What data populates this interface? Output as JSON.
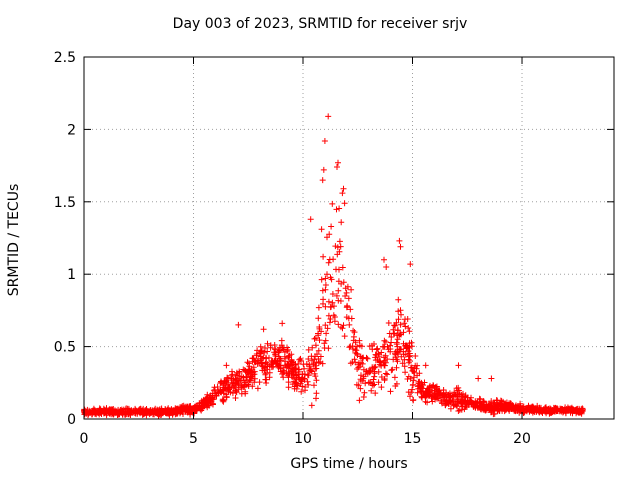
{
  "chart_data": {
    "type": "scatter",
    "title": "Day 003 of 2023, SRMTID for receiver srjv",
    "xlabel": "GPS time / hours",
    "ylabel": "SRMTID / TECUs",
    "xlim": [
      0,
      24.2
    ],
    "ylim": [
      0,
      2.5
    ],
    "xticks": [
      0,
      5,
      10,
      15,
      20
    ],
    "xtick_labels": [
      "0",
      "5",
      "10",
      "15",
      "20"
    ],
    "yticks": [
      0,
      0.5,
      1,
      1.5,
      2,
      2.5
    ],
    "ytick_labels": [
      "0",
      "0.5",
      "1",
      "1.5",
      "2",
      "2.5"
    ],
    "grid": true,
    "marker": "+",
    "color": "#ff0000",
    "series": [
      {
        "name": "SRMTID",
        "profile": [
          [
            0.0,
            0.05,
            0.03
          ],
          [
            1.0,
            0.05,
            0.03
          ],
          [
            2.0,
            0.05,
            0.03
          ],
          [
            3.0,
            0.05,
            0.03
          ],
          [
            4.0,
            0.05,
            0.035
          ],
          [
            5.0,
            0.07,
            0.04
          ],
          [
            5.5,
            0.1,
            0.06
          ],
          [
            6.0,
            0.17,
            0.09
          ],
          [
            6.5,
            0.22,
            0.12
          ],
          [
            7.0,
            0.25,
            0.13
          ],
          [
            7.5,
            0.3,
            0.15
          ],
          [
            8.0,
            0.4,
            0.2
          ],
          [
            8.5,
            0.38,
            0.18
          ],
          [
            9.0,
            0.4,
            0.2
          ],
          [
            9.5,
            0.33,
            0.17
          ],
          [
            10.0,
            0.3,
            0.15
          ],
          [
            10.5,
            0.4,
            0.35
          ],
          [
            11.0,
            0.8,
            0.7
          ],
          [
            11.5,
            1.0,
            0.75
          ],
          [
            12.0,
            0.8,
            0.6
          ],
          [
            12.5,
            0.4,
            0.3
          ],
          [
            13.0,
            0.35,
            0.25
          ],
          [
            13.5,
            0.4,
            0.3
          ],
          [
            14.0,
            0.45,
            0.35
          ],
          [
            14.5,
            0.55,
            0.45
          ],
          [
            15.0,
            0.35,
            0.3
          ],
          [
            15.5,
            0.18,
            0.1
          ],
          [
            16.0,
            0.2,
            0.12
          ],
          [
            16.5,
            0.13,
            0.08
          ],
          [
            17.0,
            0.15,
            0.12
          ],
          [
            17.5,
            0.12,
            0.08
          ],
          [
            18.0,
            0.1,
            0.06
          ],
          [
            18.5,
            0.08,
            0.05
          ],
          [
            19.0,
            0.09,
            0.06
          ],
          [
            20.0,
            0.07,
            0.04
          ],
          [
            21.0,
            0.06,
            0.03
          ],
          [
            22.0,
            0.06,
            0.03
          ],
          [
            22.8,
            0.06,
            0.03
          ]
        ],
        "peaks": [
          {
            "x": 11.15,
            "y": 2.09
          },
          {
            "x": 11.0,
            "y": 1.92
          },
          {
            "x": 11.6,
            "y": 1.77
          },
          {
            "x": 11.55,
            "y": 1.74
          },
          {
            "x": 10.95,
            "y": 1.72
          },
          {
            "x": 10.9,
            "y": 1.65
          },
          {
            "x": 11.85,
            "y": 1.59
          },
          {
            "x": 11.8,
            "y": 1.56
          },
          {
            "x": 11.9,
            "y": 1.49
          },
          {
            "x": 10.35,
            "y": 1.38
          },
          {
            "x": 10.85,
            "y": 1.31
          },
          {
            "x": 14.4,
            "y": 1.23
          },
          {
            "x": 14.45,
            "y": 1.19
          },
          {
            "x": 14.9,
            "y": 1.07
          },
          {
            "x": 13.7,
            "y": 1.1
          },
          {
            "x": 13.8,
            "y": 1.05
          },
          {
            "x": 7.05,
            "y": 0.65
          },
          {
            "x": 9.05,
            "y": 0.66
          },
          {
            "x": 8.2,
            "y": 0.62
          },
          {
            "x": 6.5,
            "y": 0.37
          },
          {
            "x": 15.6,
            "y": 0.37
          },
          {
            "x": 17.1,
            "y": 0.37
          },
          {
            "x": 18.0,
            "y": 0.28
          },
          {
            "x": 18.6,
            "y": 0.28
          }
        ],
        "n_points": 1800,
        "seed": 20230103
      }
    ]
  }
}
